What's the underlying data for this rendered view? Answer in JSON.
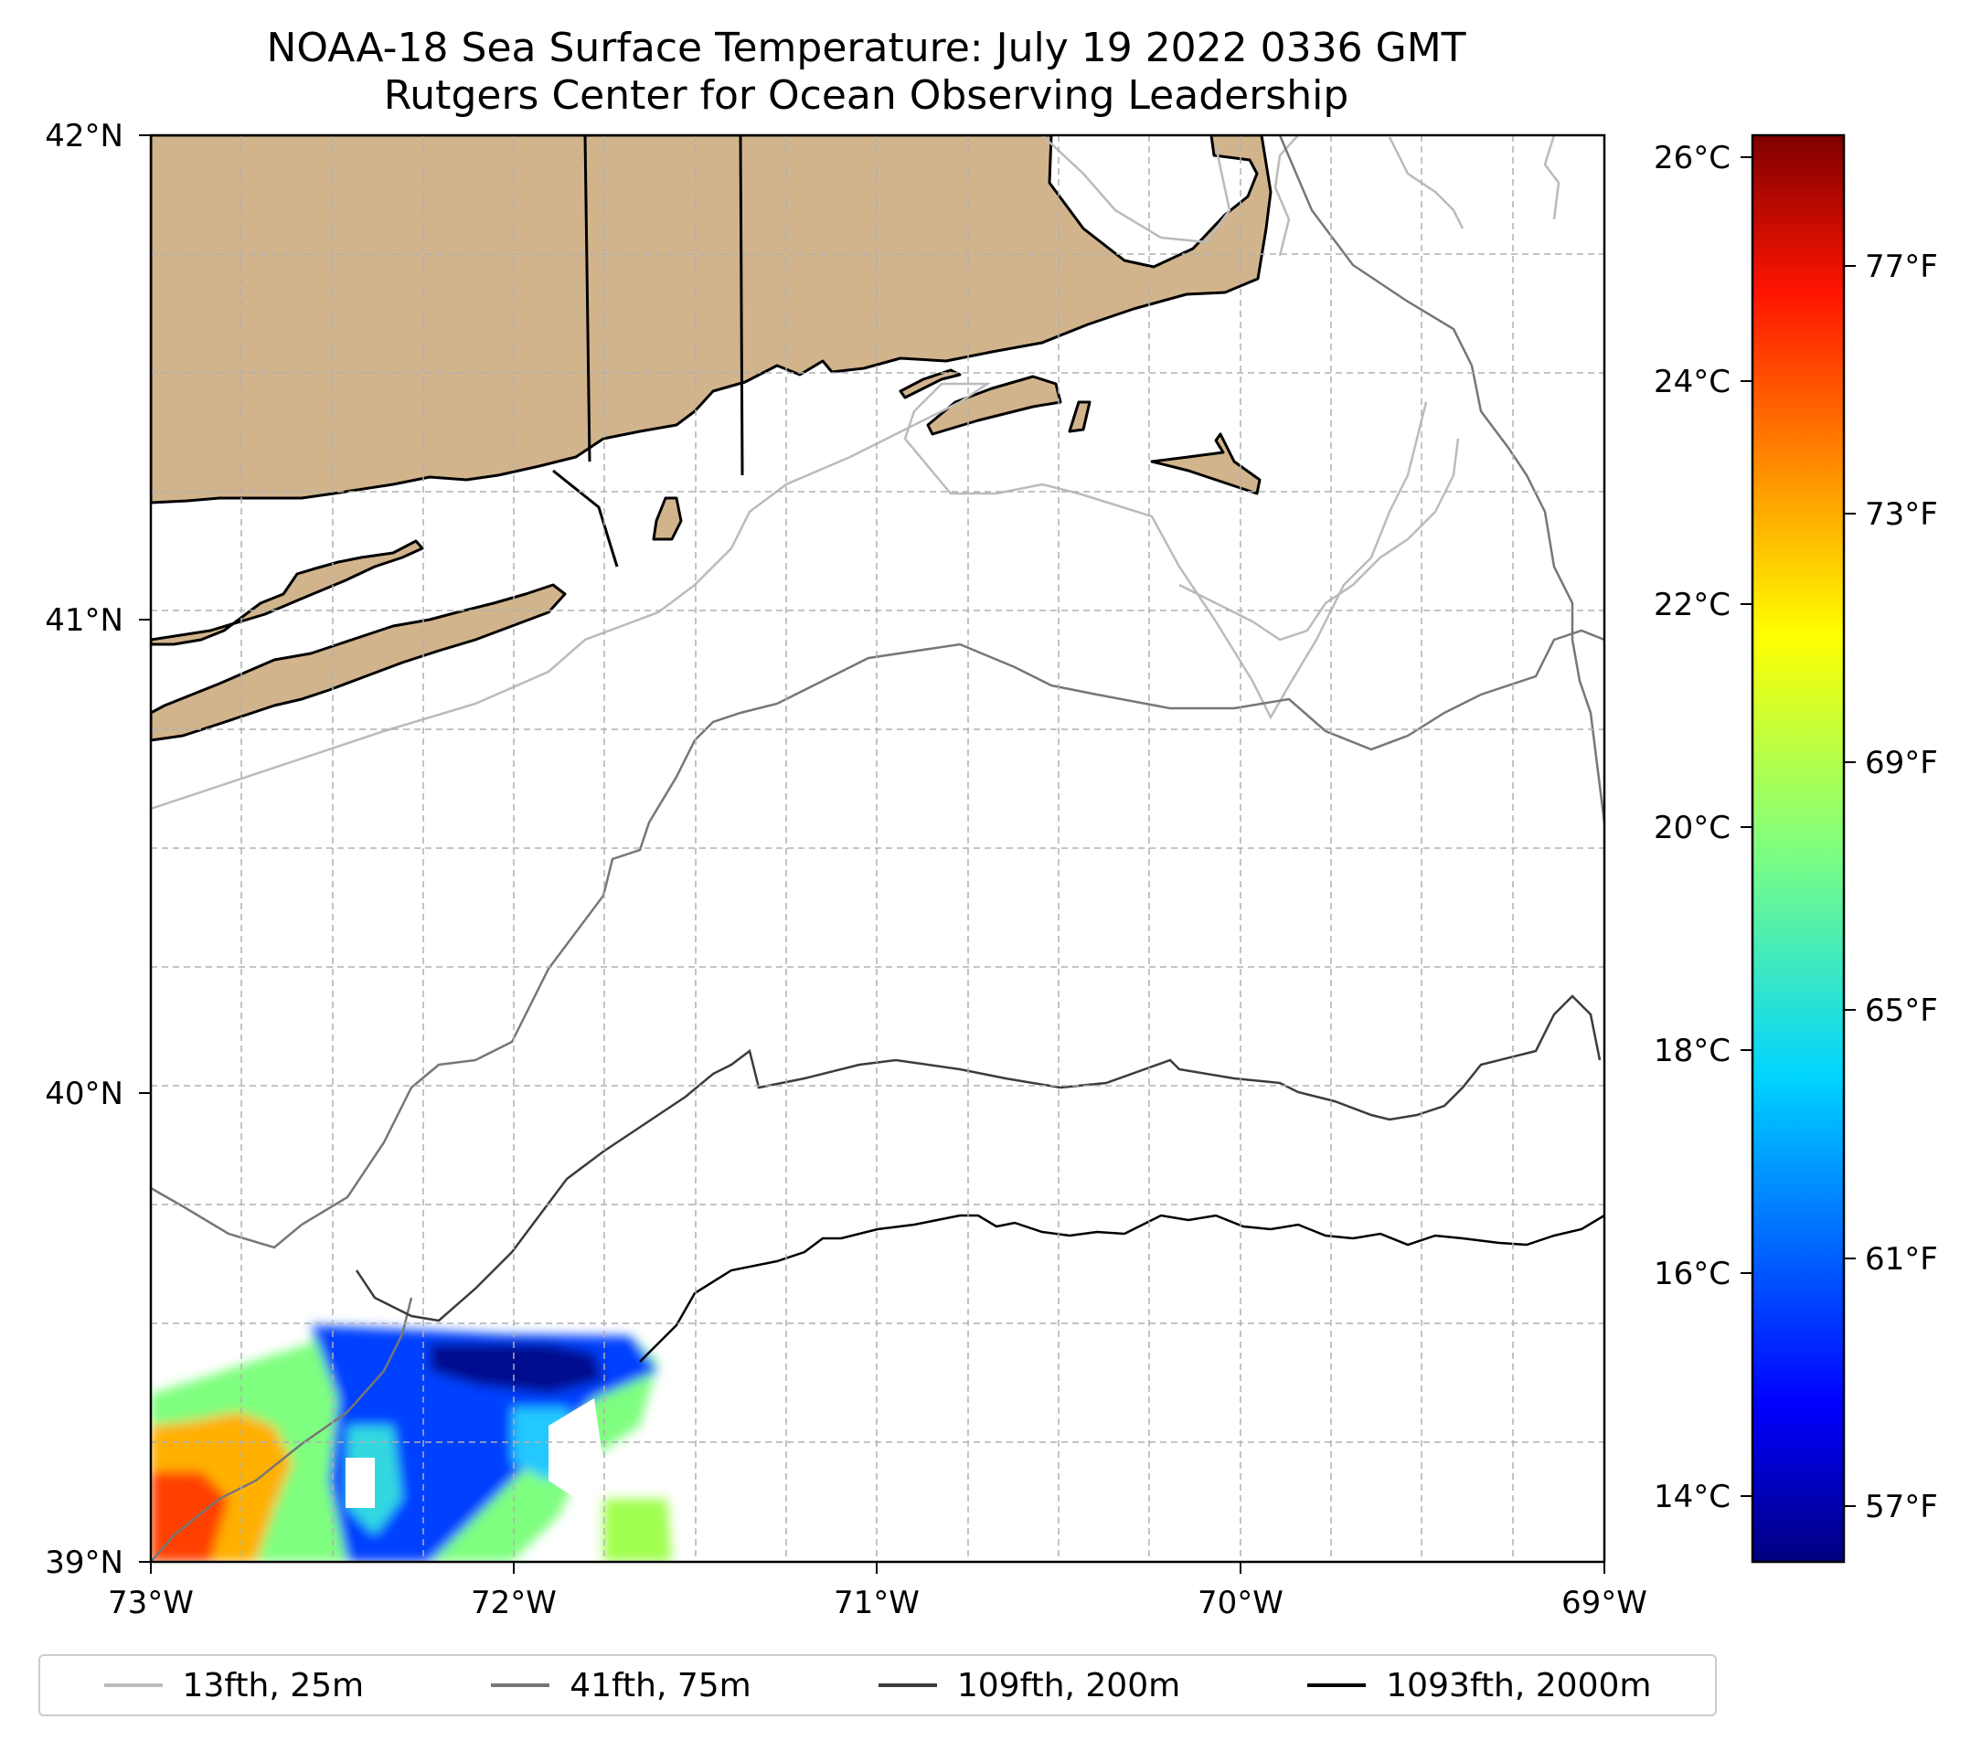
{
  "title": "NOAA-18 Sea Surface Temperature: July 19 2022 0336 GMT",
  "subtitle": "Rutgers Center for Ocean Observing Leadership",
  "map": {
    "lat_ticks": [
      "42°N",
      "41°N",
      "40°N",
      "39°N"
    ],
    "lon_ticks": [
      "73°W",
      "72°W",
      "71°W",
      "70°W",
      "69°W"
    ],
    "extent": {
      "lon_min": -73,
      "lon_max": -69,
      "lat_min": 39,
      "lat_max": 42
    },
    "land_color": "#d2b48c",
    "grid": true
  },
  "colorbar": {
    "celsius_ticks": [
      "26°C",
      "24°C",
      "22°C",
      "20°C",
      "18°C",
      "16°C",
      "14°C"
    ],
    "fahrenheit_ticks": [
      "77°F",
      "73°F",
      "69°F",
      "65°F",
      "61°F",
      "57°F"
    ],
    "colormap": "jet",
    "colors": [
      "#00007f",
      "#0000ff",
      "#007fff",
      "#00ffff",
      "#7fff7f",
      "#ffff00",
      "#ff7f00",
      "#ff0000",
      "#7f0000"
    ]
  },
  "legend": [
    {
      "label": "13fth, 25m",
      "color": "#bbbbbb"
    },
    {
      "label": "41fth, 75m",
      "color": "#777777"
    },
    {
      "label": "109fth, 200m",
      "color": "#3c3c3c"
    },
    {
      "label": "1093fth, 2000m",
      "color": "#000000"
    }
  ]
}
